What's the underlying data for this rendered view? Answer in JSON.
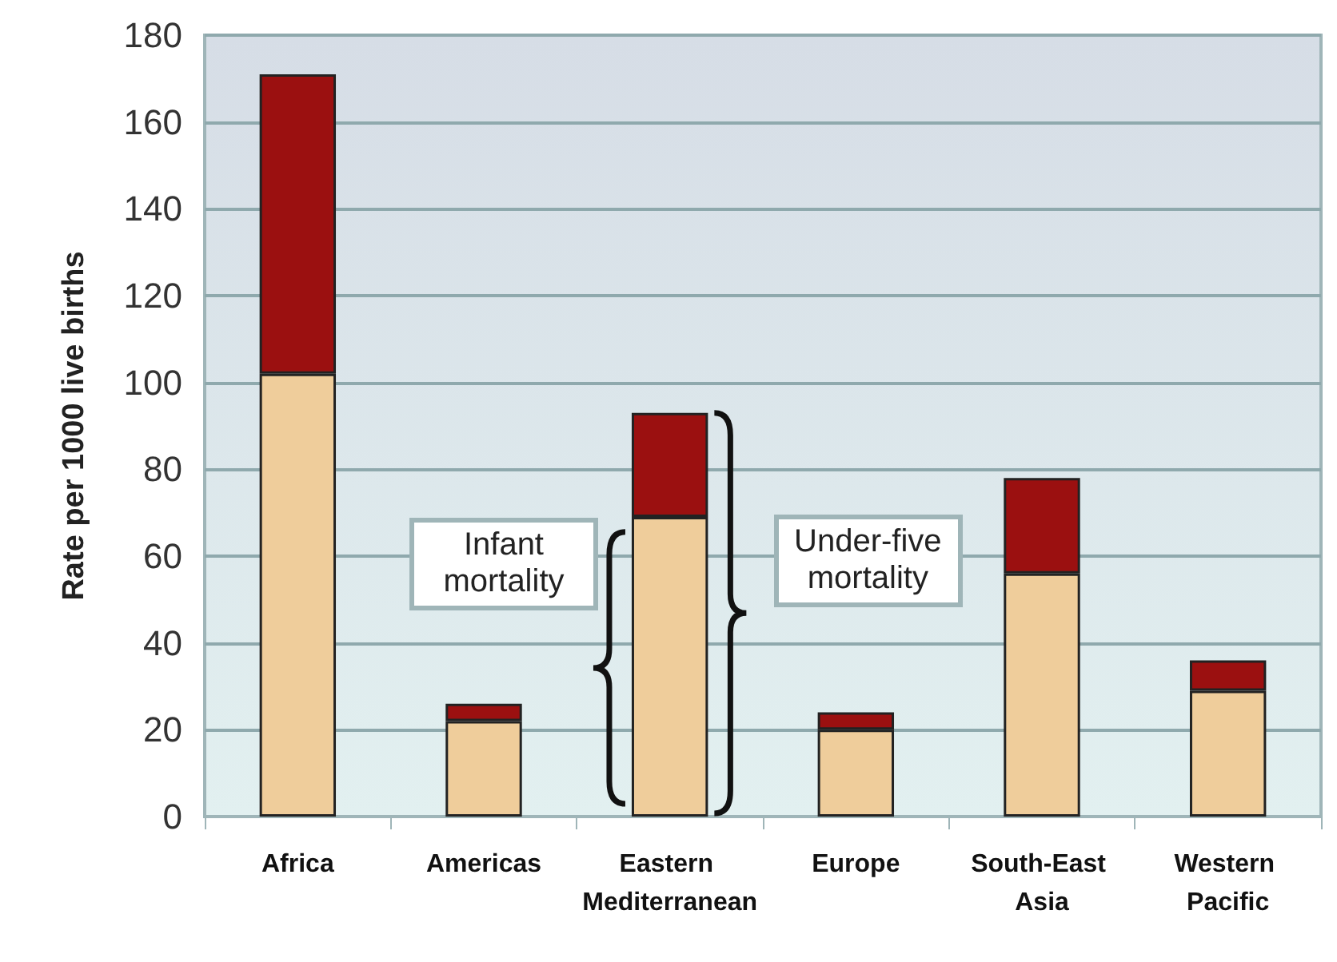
{
  "chart_data": {
    "type": "bar",
    "ylabel": "Rate per 1000 live births",
    "categories": [
      "Africa",
      "Americas",
      "Eastern Mediterranean",
      "Europe",
      "South-East Asia",
      "Western Pacific"
    ],
    "stacked": true,
    "series": [
      {
        "name": "Infant mortality",
        "color": "#efcd9b",
        "values": [
          102,
          22,
          69,
          20,
          56,
          29
        ]
      },
      {
        "name": "Under-five mortality",
        "color": "#9b1010",
        "values": [
          69,
          4,
          24,
          4,
          22,
          7
        ]
      }
    ],
    "ylim": [
      0,
      180
    ],
    "yticks": [
      0,
      20,
      40,
      60,
      80,
      100,
      120,
      140,
      160,
      180
    ],
    "grid": "y",
    "legend": false
  }
}
